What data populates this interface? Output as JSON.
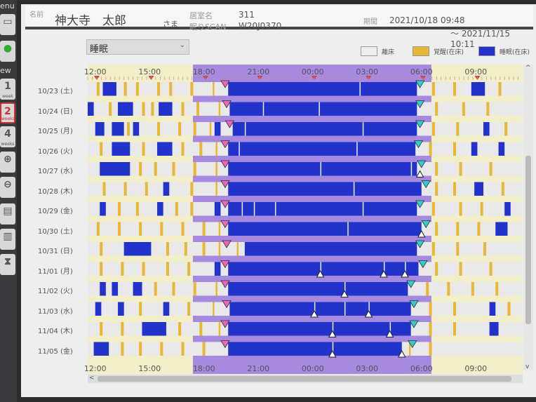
{
  "toolbar": {
    "menu_label": "enu",
    "view_label": "ew",
    "buttons": [
      {
        "id": "save",
        "icon": "save-icon"
      },
      {
        "id": "refresh",
        "icon": "refresh-icon"
      },
      {
        "id": "1week",
        "num": "1",
        "sub": "week"
      },
      {
        "id": "2weeks",
        "num": "2",
        "sub": "weeks",
        "active": true
      },
      {
        "id": "4weeks",
        "num": "4",
        "sub": "weeks"
      },
      {
        "id": "zoom-in",
        "icon": "zoom-in-icon",
        "glyph": "⊕"
      },
      {
        "id": "zoom-out",
        "icon": "zoom-out-icon",
        "glyph": "⊖"
      },
      {
        "id": "bar-view",
        "icon": "bar-view-icon",
        "glyph": "▤"
      },
      {
        "id": "histogram",
        "icon": "histogram-icon",
        "glyph": "▥"
      },
      {
        "id": "markers",
        "icon": "markers-icon",
        "glyph": "⧗"
      }
    ]
  },
  "header": {
    "name_label": "名前",
    "name": "神大寺　太郎",
    "honorific": "さま",
    "room_label": "居室名",
    "room": "311",
    "scan_label": "眠りSCAN",
    "scan": "W20J0370",
    "period_label": "期間",
    "period_start": "2021/10/18 09:48",
    "period_end": "～ 2021/11/15 10:11"
  },
  "dropdown": {
    "value": "睡眠"
  },
  "legend": [
    {
      "label": "離床",
      "color": "#eeeeee"
    },
    {
      "label": "覚醒(在床)",
      "color": "#e8b830"
    },
    {
      "label": "睡眠(在床)",
      "color": "#2233cc"
    }
  ],
  "colors": {
    "night": "#a58ae0",
    "day": "#f2efc8",
    "sleep": "#2233cc",
    "awake": "#e8b830",
    "out": "#e9e9e9",
    "bed_in": "#ee66bb",
    "wake": "#33cccc"
  },
  "axis": {
    "start": "11:30",
    "hours": 24,
    "ticks": [
      "12:00",
      "15:00",
      "18:00",
      "21:00",
      "00:00",
      "03:00",
      "06:00",
      "09:00"
    ],
    "night": [
      "18:00",
      "06:00"
    ]
  },
  "rows": [
    {
      "date": "10/23 (土)",
      "bed_in": "19:05",
      "wake": "05:50",
      "sleep": [
        [
          "12:20",
          "13:05"
        ],
        [
          "19:15",
          "05:40"
        ],
        [
          "08:40",
          "09:25"
        ]
      ],
      "awake": [
        "12:00",
        "13:30",
        "14:10",
        "15:20",
        "16:00",
        "17:10",
        "18:20",
        "02:30",
        "06:30",
        "07:40",
        "10:10"
      ],
      "out_marks": []
    },
    {
      "date": "10/24 (日)",
      "bed_in": "19:10",
      "wake": "05:50",
      "sleep": [
        [
          "11:30",
          "11:50"
        ],
        [
          "13:10",
          "14:00"
        ],
        [
          "15:25",
          "16:10"
        ],
        [
          "19:20",
          "05:40"
        ]
      ],
      "awake": [
        "12:40",
        "14:30",
        "15:00",
        "16:40",
        "17:30",
        "18:40",
        "21:10",
        "00:15",
        "06:40",
        "08:10",
        "09:30"
      ],
      "out_marks": []
    },
    {
      "date": "10/25 (月)",
      "bed_in": "19:20",
      "wake": "05:50",
      "sleep": [
        [
          "11:55",
          "12:25"
        ],
        [
          "12:50",
          "13:30"
        ],
        [
          "14:00",
          "14:20"
        ],
        [
          "18:30",
          "18:50"
        ],
        [
          "19:30",
          "05:40"
        ],
        [
          "09:20",
          "09:40"
        ]
      ],
      "awake": [
        "13:40",
        "15:20",
        "16:30",
        "17:20",
        "18:10",
        "20:10",
        "02:40",
        "06:30",
        "07:50",
        "10:30"
      ],
      "out_marks": []
    },
    {
      "date": "10/26 (火)",
      "bed_in": "19:05",
      "wake": "05:45",
      "sleep": [
        [
          "12:50",
          "13:50"
        ],
        [
          "15:20",
          "16:10"
        ],
        [
          "19:15",
          "05:35"
        ],
        [
          "08:40",
          "09:00"
        ],
        [
          "10:10",
          "10:30"
        ]
      ],
      "awake": [
        "12:10",
        "14:30",
        "16:40",
        "17:40",
        "18:30",
        "19:50",
        "02:20",
        "06:20",
        "07:40"
      ],
      "out_marks": []
    },
    {
      "date": "10/27 (水)",
      "bed_in": "19:05",
      "wake": "05:55",
      "sleep": [
        [
          "12:10",
          "13:50"
        ],
        [
          "19:15",
          "05:40"
        ]
      ],
      "awake": [
        "14:20",
        "15:10",
        "16:10",
        "17:20",
        "18:30",
        "00:20",
        "05:20",
        "06:40",
        "08:00",
        "09:40"
      ],
      "out_marks": [
        "05:50"
      ]
    },
    {
      "date": "10/28 (木)",
      "bed_in": "19:05",
      "wake": "06:10",
      "sleep": [
        [
          "15:40",
          "16:00"
        ],
        [
          "19:15",
          "05:55"
        ],
        [
          "08:50",
          "09:20"
        ]
      ],
      "awake": [
        "12:20",
        "13:30",
        "14:40",
        "17:10",
        "18:30",
        "02:10",
        "06:40",
        "07:40",
        "10:20"
      ],
      "out_marks": []
    },
    {
      "date": "10/29 (金)",
      "bed_in": "19:05",
      "wake": "05:50",
      "sleep": [
        [
          "12:10",
          "12:30"
        ],
        [
          "15:20",
          "15:40"
        ],
        [
          "18:30",
          "18:50"
        ],
        [
          "19:15",
          "05:40"
        ],
        [
          "10:30",
          "10:50"
        ]
      ],
      "awake": [
        "13:10",
        "14:10",
        "16:20",
        "17:10",
        "20:00",
        "20:40",
        "21:50",
        "02:40",
        "06:30",
        "08:00",
        "09:10"
      ],
      "out_marks": []
    },
    {
      "date": "10/30 (土)",
      "bed_in": "19:05",
      "wake": "06:10",
      "sleep": [
        [
          "19:15",
          "05:55"
        ],
        [
          "10:00",
          "10:40"
        ]
      ],
      "awake": [
        "12:00",
        "13:10",
        "14:20",
        "15:30",
        "16:40",
        "17:50",
        "18:40",
        "01:50",
        "06:40",
        "07:50",
        "09:00"
      ],
      "out_marks": [
        "05:55"
      ]
    },
    {
      "date": "10/31 (日)",
      "bed_in": "19:10",
      "wake": "05:50",
      "sleep": [
        [
          "13:30",
          "15:00"
        ],
        [
          "20:10",
          "05:40"
        ]
      ],
      "awake": [
        "12:10",
        "15:50",
        "16:50",
        "17:50",
        "18:40",
        "19:40",
        "06:30",
        "07:50",
        "09:20"
      ],
      "out_marks": []
    },
    {
      "date": "11/01 (月)",
      "bed_in": "19:05",
      "wake": "06:00",
      "sleep": [
        [
          "18:30",
          "18:50"
        ],
        [
          "19:15",
          "05:45"
        ]
      ],
      "awake": [
        "12:10",
        "13:20",
        "14:30",
        "15:50",
        "17:00",
        "00:20",
        "03:50",
        "05:00",
        "06:40",
        "08:00",
        "09:40"
      ],
      "out_marks": [
        "00:20",
        "03:50",
        "05:00"
      ]
    },
    {
      "date": "11/02 (火)",
      "bed_in": "19:05",
      "wake": "05:20",
      "sleep": [
        [
          "12:10",
          "12:30"
        ],
        [
          "12:50",
          "13:10"
        ],
        [
          "14:00",
          "14:30"
        ],
        [
          "19:15",
          "05:10"
        ]
      ],
      "awake": [
        "15:10",
        "16:10",
        "17:20",
        "18:30",
        "01:40",
        "06:10",
        "07:20",
        "08:40",
        "10:00"
      ],
      "out_marks": [
        "01:40"
      ]
    },
    {
      "date": "11/03 (水)",
      "bed_in": "19:10",
      "wake": "05:30",
      "sleep": [
        [
          "11:55",
          "12:15"
        ],
        [
          "13:10",
          "13:30"
        ],
        [
          "15:40",
          "16:00"
        ],
        [
          "19:20",
          "05:20"
        ],
        [
          "09:40",
          "10:00"
        ]
      ],
      "awake": [
        "14:20",
        "17:00",
        "18:20",
        "00:00",
        "01:40",
        "03:00",
        "06:20",
        "07:40",
        "10:40"
      ],
      "out_marks": [
        "00:00",
        "03:00"
      ]
    },
    {
      "date": "11/04 (木)",
      "bed_in": "19:05",
      "wake": "05:30",
      "sleep": [
        [
          "14:30",
          "15:50"
        ],
        [
          "19:15",
          "05:20"
        ],
        [
          "09:40",
          "10:10"
        ]
      ],
      "awake": [
        "12:10",
        "13:20",
        "16:30",
        "17:40",
        "18:40",
        "01:00",
        "04:10",
        "06:20",
        "07:40"
      ],
      "out_marks": [
        "01:00",
        "04:10"
      ]
    },
    {
      "date": "11/05 (金)",
      "bed_in": "19:05",
      "wake": "05:25",
      "sleep": [
        [
          "11:50",
          "12:40"
        ],
        [
          "19:15",
          "04:50"
        ]
      ],
      "awake": [
        "13:20",
        "14:20",
        "15:30",
        "16:40",
        "17:50",
        "01:00",
        "05:10",
        "06:20"
      ],
      "out_marks": [
        "01:00",
        "04:50"
      ]
    }
  ]
}
